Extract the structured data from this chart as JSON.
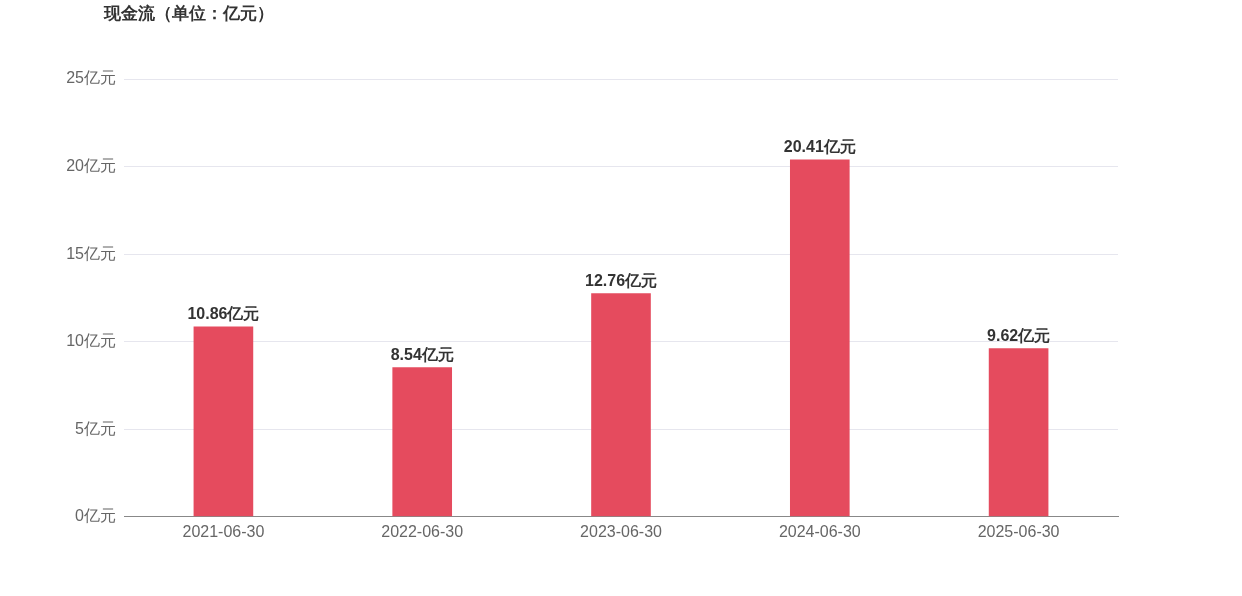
{
  "chart_data": {
    "type": "bar",
    "title": "现金流（单位：亿元）",
    "categories": [
      "2021-06-30",
      "2022-06-30",
      "2023-06-30",
      "2024-06-30",
      "2025-06-30"
    ],
    "values": [
      10.86,
      8.54,
      12.76,
      20.41,
      9.62
    ],
    "value_labels": [
      "10.86亿元",
      "8.54亿元",
      "12.76亿元",
      "20.41亿元",
      "9.62亿元"
    ],
    "color": "#e54b5e",
    "ylim": [
      0,
      25
    ],
    "yticks": [
      {
        "value": 0,
        "label": "0亿元"
      },
      {
        "value": 5,
        "label": "5亿元"
      },
      {
        "value": 10,
        "label": "10亿元"
      },
      {
        "value": 15,
        "label": "15亿元"
      },
      {
        "value": 20,
        "label": "20亿元"
      },
      {
        "value": 25,
        "label": "25亿元"
      }
    ],
    "grid": "y",
    "legend": false
  }
}
